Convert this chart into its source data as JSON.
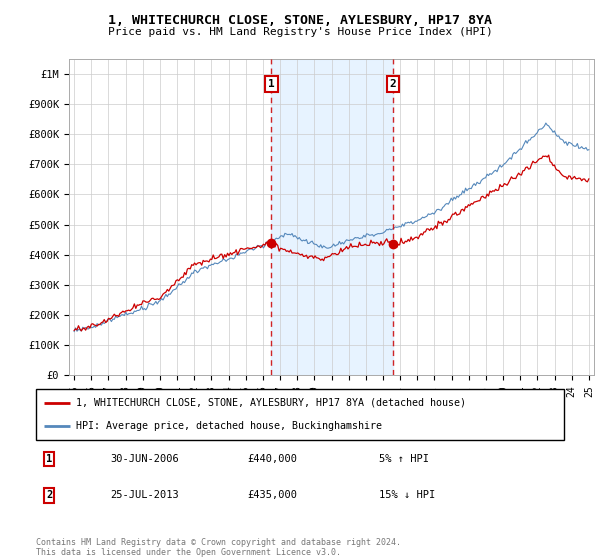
{
  "title": "1, WHITECHURCH CLOSE, STONE, AYLESBURY, HP17 8YA",
  "subtitle": "Price paid vs. HM Land Registry's House Price Index (HPI)",
  "legend_line1": "1, WHITECHURCH CLOSE, STONE, AYLESBURY, HP17 8YA (detached house)",
  "legend_line2": "HPI: Average price, detached house, Buckinghamshire",
  "footer": "Contains HM Land Registry data © Crown copyright and database right 2024.\nThis data is licensed under the Open Government Licence v3.0.",
  "sale1_date": "30-JUN-2006",
  "sale1_price": "£440,000",
  "sale1_hpi": "5% ↑ HPI",
  "sale2_date": "25-JUL-2013",
  "sale2_price": "£435,000",
  "sale2_hpi": "15% ↓ HPI",
  "red_color": "#cc0000",
  "blue_color": "#5588bb",
  "shade_color": "#ddeeff",
  "background_color": "#ffffff",
  "ylim": [
    0,
    1050000
  ],
  "yticks": [
    0,
    100000,
    200000,
    300000,
    400000,
    500000,
    600000,
    700000,
    800000,
    900000,
    1000000
  ],
  "ytick_labels": [
    "£0",
    "£100K",
    "£200K",
    "£300K",
    "£400K",
    "£500K",
    "£600K",
    "£700K",
    "£800K",
    "£900K",
    "£1M"
  ],
  "sale1_x": 2006.5,
  "sale1_y": 440000,
  "sale2_x": 2013.58,
  "sale2_y": 435000,
  "xmin": 1994.7,
  "xmax": 2025.3
}
